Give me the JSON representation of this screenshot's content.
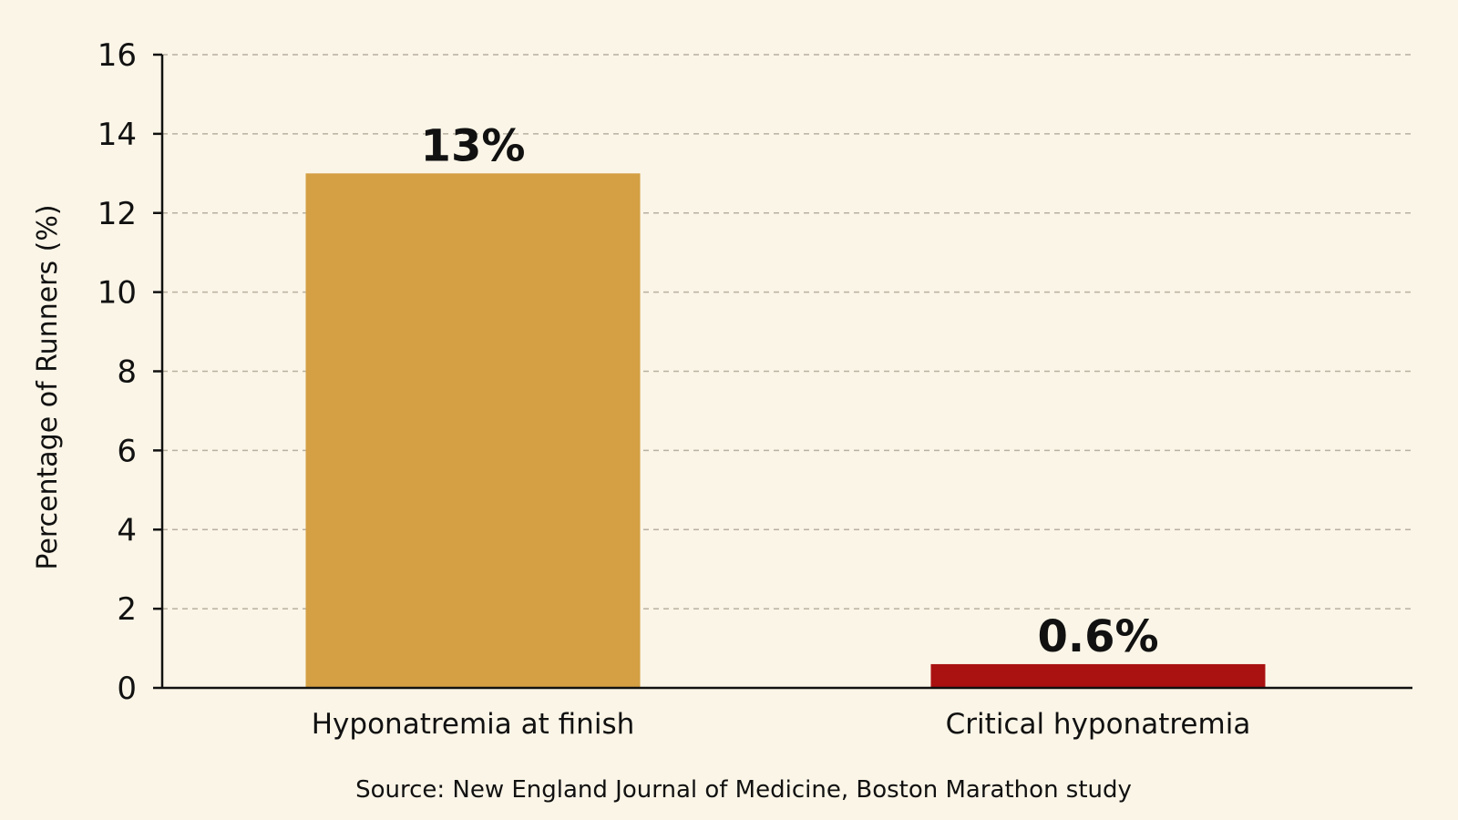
{
  "chart_data": {
    "type": "bar",
    "categories": [
      "Hyponatremia at finish",
      "Critical hyponatremia"
    ],
    "values": [
      13,
      0.6
    ],
    "value_labels": [
      "13%",
      "0.6%"
    ],
    "colors": [
      "#d4a043",
      "#aa1111"
    ],
    "title": "",
    "xlabel": "",
    "ylabel": "Percentage of Runners (%)",
    "ylim": [
      0,
      16
    ],
    "yticks": [
      0,
      2,
      4,
      6,
      8,
      10,
      12,
      14,
      16
    ],
    "grid": true,
    "legend": "none"
  },
  "source": "Source: New England Journal of Medicine, Boston Marathon study",
  "style": {
    "background": "#fbf5e7",
    "axis_color": "#111111",
    "grid_color": "#b8b0a0"
  }
}
